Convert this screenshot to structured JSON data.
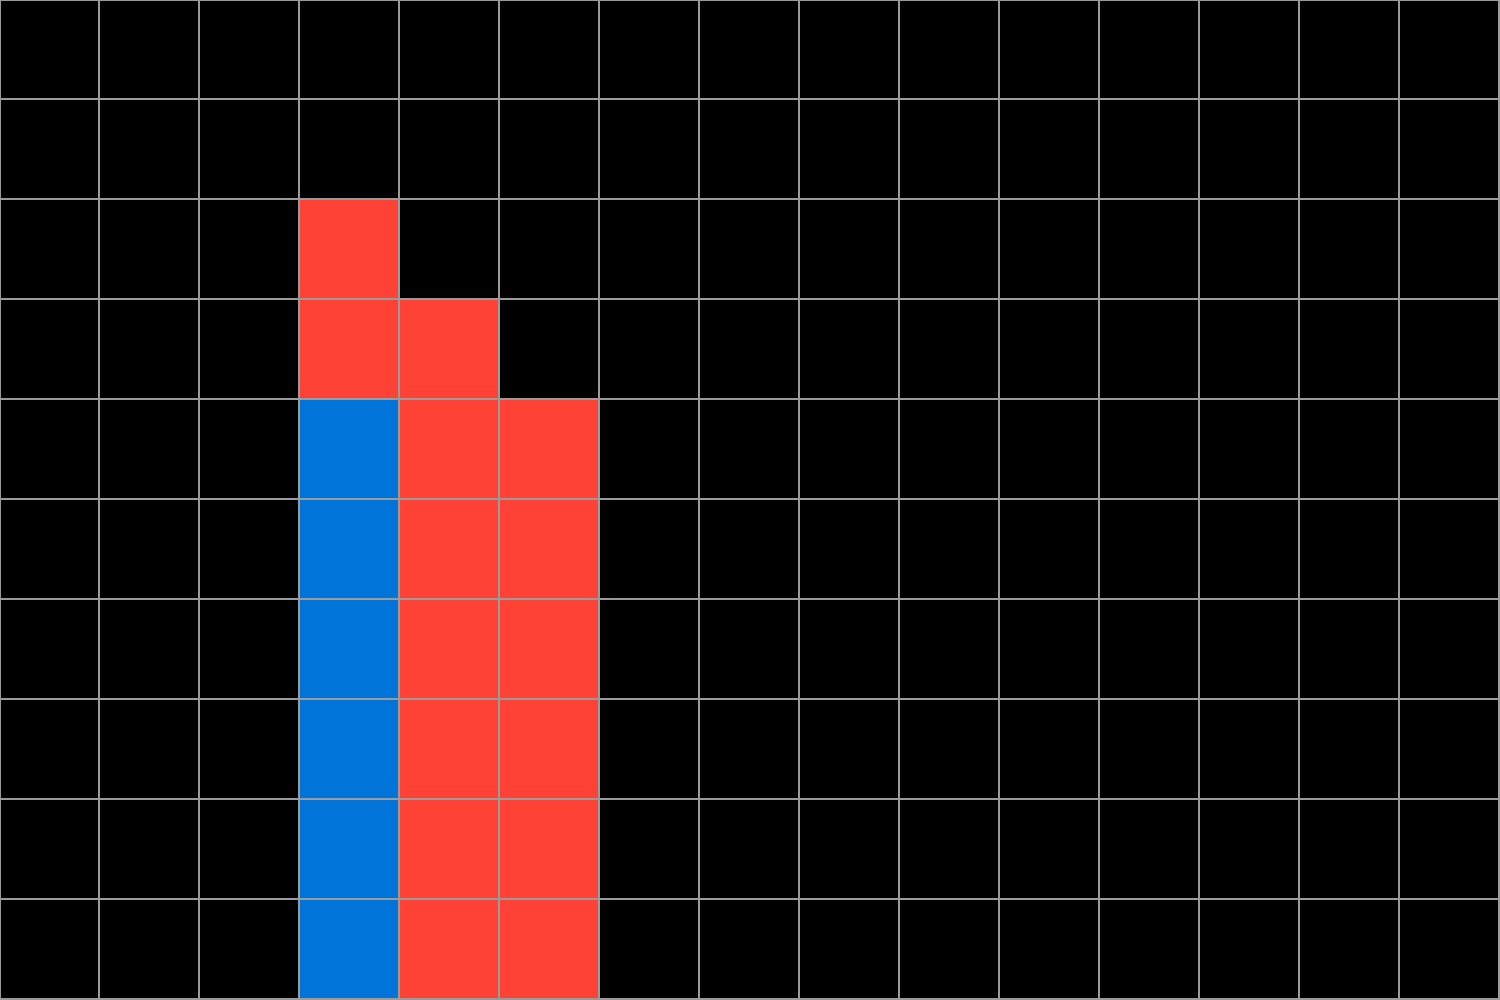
{
  "grid": {
    "columns": 15,
    "rows": 10,
    "colors": {
      "empty": "#000000",
      "red": "#ff4136",
      "blue": "#0074d9",
      "gridline": "#9b9b9b"
    },
    "cells": [
      [
        0,
        0,
        0,
        0,
        0,
        0,
        0,
        0,
        0,
        0,
        0,
        0,
        0,
        0,
        0
      ],
      [
        0,
        0,
        0,
        0,
        0,
        0,
        0,
        0,
        0,
        0,
        0,
        0,
        0,
        0,
        0
      ],
      [
        0,
        0,
        0,
        2,
        0,
        0,
        0,
        0,
        0,
        0,
        0,
        0,
        0,
        0,
        0
      ],
      [
        0,
        0,
        0,
        2,
        2,
        0,
        0,
        0,
        0,
        0,
        0,
        0,
        0,
        0,
        0
      ],
      [
        0,
        0,
        0,
        1,
        2,
        2,
        0,
        0,
        0,
        0,
        0,
        0,
        0,
        0,
        0
      ],
      [
        0,
        0,
        0,
        1,
        2,
        2,
        0,
        0,
        0,
        0,
        0,
        0,
        0,
        0,
        0
      ],
      [
        0,
        0,
        0,
        1,
        2,
        2,
        0,
        0,
        0,
        0,
        0,
        0,
        0,
        0,
        0
      ],
      [
        0,
        0,
        0,
        1,
        2,
        2,
        0,
        0,
        0,
        0,
        0,
        0,
        0,
        0,
        0
      ],
      [
        0,
        0,
        0,
        1,
        2,
        2,
        0,
        0,
        0,
        0,
        0,
        0,
        0,
        0,
        0
      ],
      [
        0,
        0,
        0,
        1,
        2,
        2,
        0,
        0,
        0,
        0,
        0,
        0,
        0,
        0,
        0
      ]
    ],
    "legend": {
      "0": "empty",
      "1": "blue",
      "2": "red"
    }
  }
}
